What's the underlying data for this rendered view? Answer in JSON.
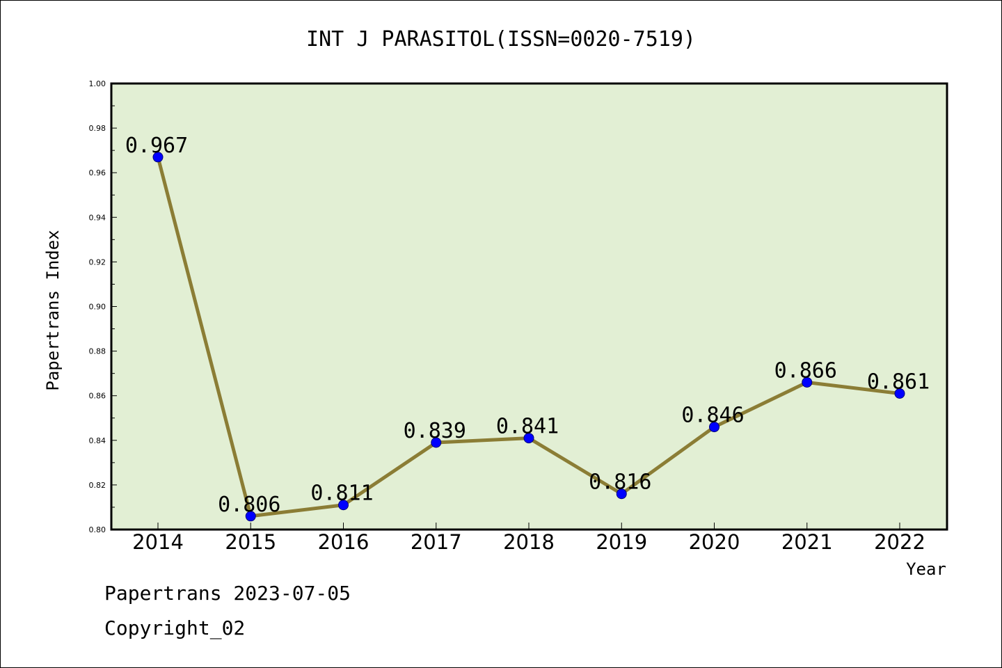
{
  "chart_data": {
    "type": "line",
    "title": "INT J PARASITOL(ISSN=0020-7519)",
    "xlabel": "Year",
    "ylabel": "Papertrans Index",
    "categories": [
      "2014",
      "2015",
      "2016",
      "2017",
      "2018",
      "2019",
      "2020",
      "2021",
      "2022"
    ],
    "values": [
      0.967,
      0.806,
      0.811,
      0.839,
      0.841,
      0.816,
      0.846,
      0.866,
      0.861
    ],
    "data_labels": [
      "0.967",
      "0.806",
      "0.811",
      "0.839",
      "0.841",
      "0.816",
      "0.846",
      "0.866",
      "0.861"
    ],
    "ylim": [
      0.8,
      1.0
    ],
    "yticks": [
      "0.80",
      "0.82",
      "0.84",
      "0.86",
      "0.88",
      "0.90",
      "0.92",
      "0.94",
      "0.96",
      "0.98",
      "1.00"
    ],
    "grid": false,
    "legend": "none",
    "colors": {
      "plot_background": "#e2efd4",
      "line": "#8b7d35",
      "marker": "#0000ff"
    }
  },
  "footer": {
    "date_line": "Papertrans 2023-07-05",
    "copyright": "Copyright_02"
  }
}
